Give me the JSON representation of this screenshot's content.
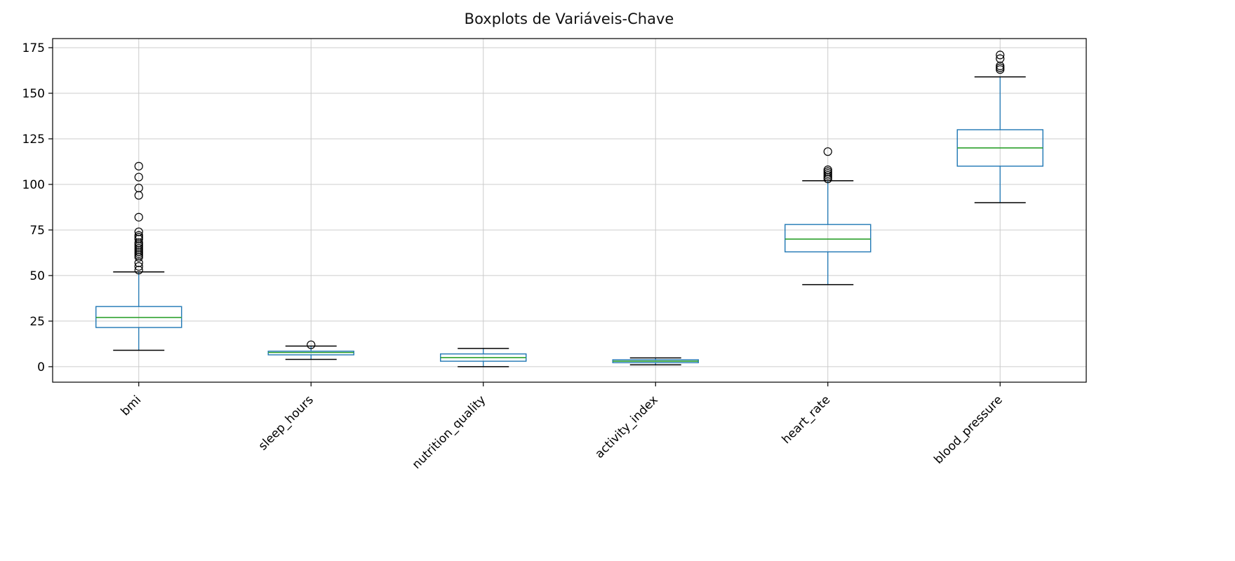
{
  "chart_data": {
    "type": "boxplot",
    "title": "Boxplots de Variáveis-Chave",
    "categories": [
      "bmi",
      "sleep_hours",
      "nutrition_quality",
      "activity_index",
      "heart_rate",
      "blood_pressure"
    ],
    "ylabel": "",
    "xlabel": "",
    "yticks": [
      0,
      25,
      50,
      75,
      100,
      125,
      150,
      175
    ],
    "ylim": [
      -8.5,
      180
    ],
    "grid": true,
    "xtick_rotation": 45,
    "series": [
      {
        "name": "bmi",
        "whisker_low": 9,
        "q1": 21.5,
        "median": 27,
        "q3": 33,
        "whisker_high": 52,
        "outliers": [
          53,
          55,
          57,
          60,
          61,
          62,
          63,
          64,
          65,
          66,
          67,
          68,
          70,
          71,
          72,
          74,
          82,
          94,
          98,
          104,
          110
        ]
      },
      {
        "name": "sleep_hours",
        "whisker_low": 4,
        "q1": 6.5,
        "median": 7.8,
        "q3": 8.5,
        "whisker_high": 11.3,
        "outliers": [
          12
        ]
      },
      {
        "name": "nutrition_quality",
        "whisker_low": 0,
        "q1": 3,
        "median": 5,
        "q3": 7,
        "whisker_high": 10,
        "outliers": []
      },
      {
        "name": "activity_index",
        "whisker_low": 1,
        "q1": 2.2,
        "median": 3,
        "q3": 3.8,
        "whisker_high": 4.8,
        "outliers": []
      },
      {
        "name": "heart_rate",
        "whisker_low": 45,
        "q1": 63,
        "median": 70,
        "q3": 78,
        "whisker_high": 102,
        "outliers": [
          103,
          104,
          105,
          106,
          107,
          108,
          118
        ]
      },
      {
        "name": "blood_pressure",
        "whisker_low": 90,
        "q1": 110,
        "median": 120,
        "q3": 130,
        "whisker_high": 159,
        "outliers": [
          163,
          164,
          165,
          169,
          171
        ]
      }
    ],
    "colors": {
      "box": "#1f77b4",
      "median": "#2ca02c",
      "whisker": "#1f77b4",
      "cap": "#000000",
      "outlier": "#000000",
      "grid": "#cccccc",
      "axis": "#000000",
      "background": "#ffffff"
    }
  }
}
